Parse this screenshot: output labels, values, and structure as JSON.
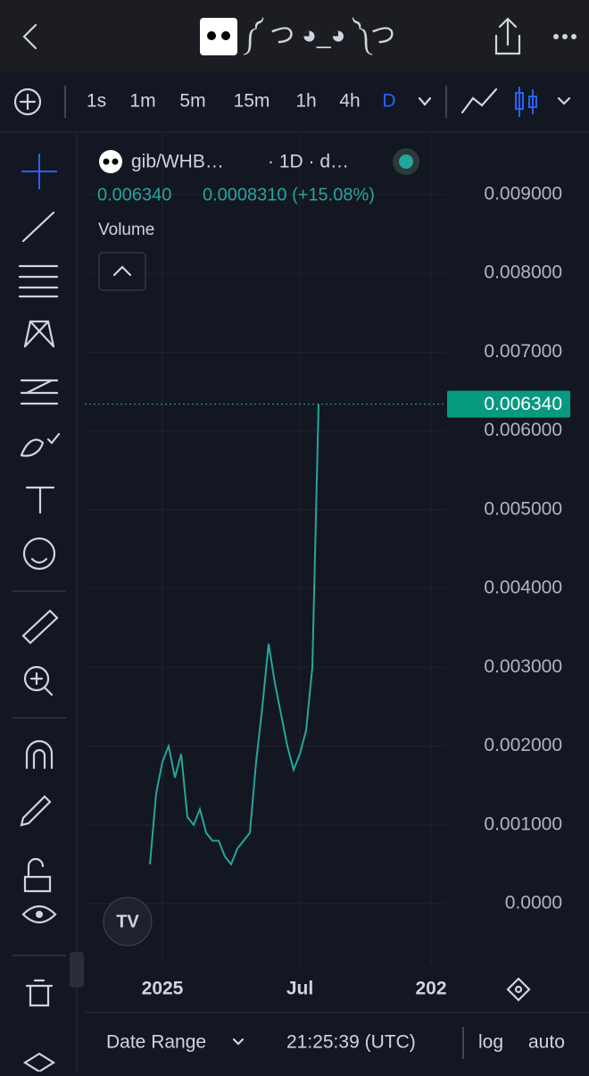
{
  "header": {
    "title": "༼ つ ◕_◕ ༽つ"
  },
  "toolbar": {
    "intervals": [
      "1s",
      "1m",
      "5m",
      "15m",
      "1h",
      "4h",
      "D"
    ]
  },
  "legend": {
    "symbol": "gib/WHB…",
    "interval": "· 1D · d…",
    "open": "0.006340",
    "change": "0.0008310 (+15.08%)",
    "study": "Volume"
  },
  "bottom_bar": {
    "range": "Date Range",
    "time": "21:25:39 (UTC)",
    "log": "log",
    "auto": "auto"
  },
  "chart_data": {
    "type": "line",
    "color": "#26a69a",
    "categories": [
      null,
      null,
      "2025",
      null,
      null,
      null,
      null,
      null,
      null,
      null,
      null,
      null,
      null,
      null,
      null,
      null,
      null,
      null,
      null,
      null,
      null,
      null,
      null,
      null,
      "Jul",
      null,
      null,
      null,
      null,
      null,
      null,
      null,
      null,
      null,
      null,
      null,
      null,
      null,
      null,
      null,
      null,
      null,
      null,
      null,
      null,
      "202",
      null,
      null
    ],
    "values": [
      0.0005,
      0.0014,
      0.0018,
      0.002,
      0.0016,
      0.0019,
      0.0011,
      0.001,
      0.0012,
      0.0009,
      0.0008,
      0.0008,
      0.0006,
      0.0005,
      0.0007,
      0.0008,
      0.0009,
      0.0018,
      0.0025,
      0.0033,
      0.0028,
      0.0024,
      0.002,
      0.0017,
      0.0019,
      0.0022,
      0.003,
      0.00634,
      null,
      null,
      null,
      null,
      null,
      null,
      null,
      null,
      null,
      null,
      null,
      null,
      null,
      null,
      null,
      null,
      null,
      null,
      null,
      null
    ],
    "ylim": [
      -0.00077,
      0.00977
    ],
    "yticks": [
      {
        "value": 0.009,
        "label": "0.009000"
      },
      {
        "value": 0.008,
        "label": "0.008000"
      },
      {
        "value": 0.007,
        "label": "0.007000"
      },
      {
        "value": 0.006,
        "label": "0.006000"
      },
      {
        "value": 0.005,
        "label": "0.005000"
      },
      {
        "value": 0.004,
        "label": "0.004000"
      },
      {
        "value": 0.003,
        "label": "0.003000"
      },
      {
        "value": 0.002,
        "label": "0.002000"
      },
      {
        "value": 0.001,
        "label": "0.001000"
      },
      {
        "value": 0,
        "label": "0.0000"
      }
    ],
    "current_price": {
      "value": 0.00634,
      "label": "0.006340"
    },
    "grid": true
  }
}
